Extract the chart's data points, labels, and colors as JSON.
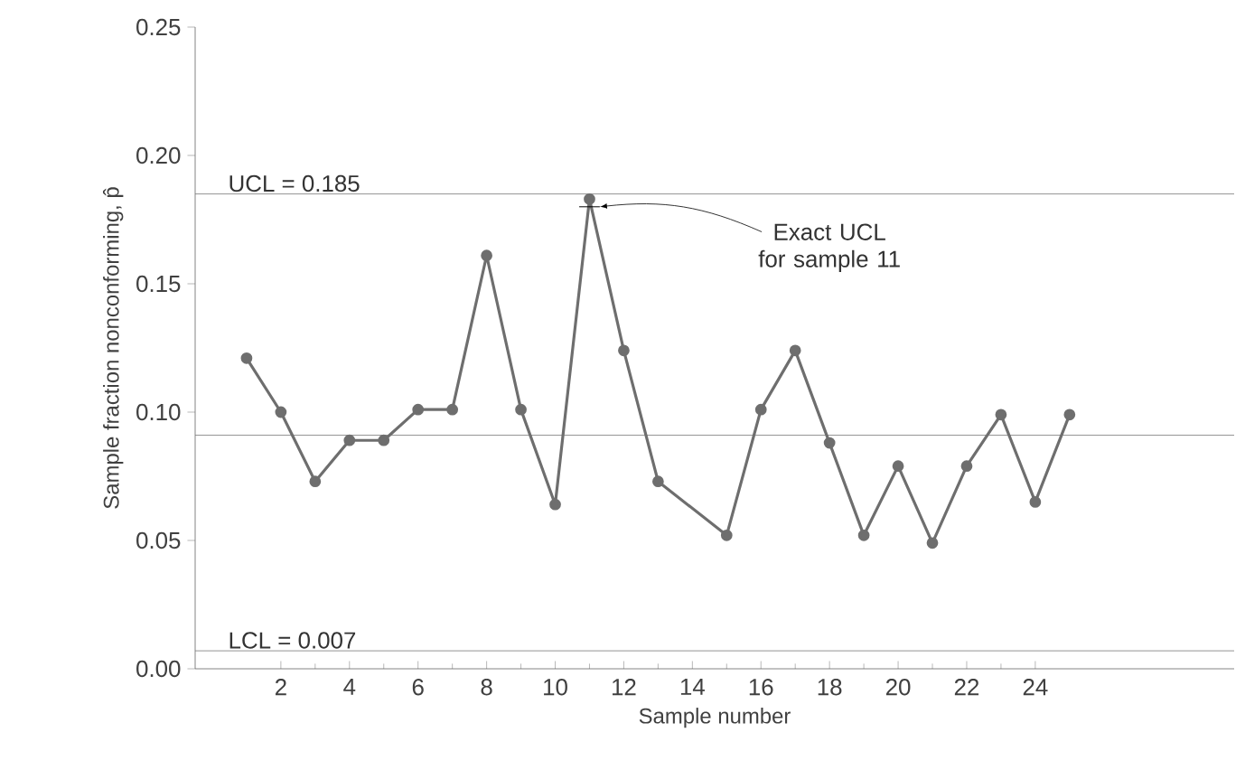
{
  "chart_data": {
    "type": "line",
    "xlabel": "Sample number",
    "ylabel": "Sample fraction nonconforming, p̂",
    "x": [
      1,
      2,
      3,
      4,
      5,
      6,
      7,
      8,
      9,
      10,
      11,
      12,
      13,
      15,
      16,
      17,
      18,
      19,
      20,
      21,
      22,
      23,
      24,
      25
    ],
    "series": [
      {
        "color": "#6e6e6e",
        "values": [
          0.121,
          0.1,
          0.073,
          0.089,
          0.089,
          0.101,
          0.101,
          0.161,
          0.101,
          0.064,
          0.183,
          0.124,
          0.073,
          0.052,
          0.101,
          0.124,
          0.088,
          0.052,
          0.079,
          0.049,
          0.079,
          0.099,
          0.065,
          0.099
        ]
      },
      {
        "type": "line",
        "x": [
          10.7,
          11.3
        ],
        "values": [
          0.18,
          0.18
        ],
        "color": "#000000",
        "marker": "none"
      }
    ],
    "marker": "circle",
    "line_style": "solid",
    "xlim": [
      -0.5,
      29.8
    ],
    "xticks": [
      2,
      4,
      6,
      8,
      10,
      12,
      14,
      16,
      18,
      20,
      22,
      24
    ],
    "ylim": [
      0,
      0.25
    ],
    "yticks": [
      {
        "value": 0,
        "label": "0.00"
      },
      {
        "value": 0.05,
        "label": "0.05"
      },
      {
        "value": 0.1,
        "label": "0.10"
      },
      {
        "value": 0.15,
        "label": "0.15"
      },
      {
        "value": 0.2,
        "label": "0.20"
      },
      {
        "value": 0.25,
        "label": "0.25"
      }
    ],
    "ref_lines": [
      {
        "axis": "y",
        "value": 0.185,
        "label": "UCL = 0.185",
        "color": "#777777"
      },
      {
        "axis": "y",
        "value": 0.091,
        "color": "#777777"
      },
      {
        "axis": "y",
        "value": 0.007,
        "label": "LCL = 0.007",
        "color": "#777777"
      }
    ],
    "annotations": [
      {
        "text": "Exact UCL for sample 11",
        "x": 11.3,
        "y": 0.18
      }
    ],
    "grid": false
  }
}
